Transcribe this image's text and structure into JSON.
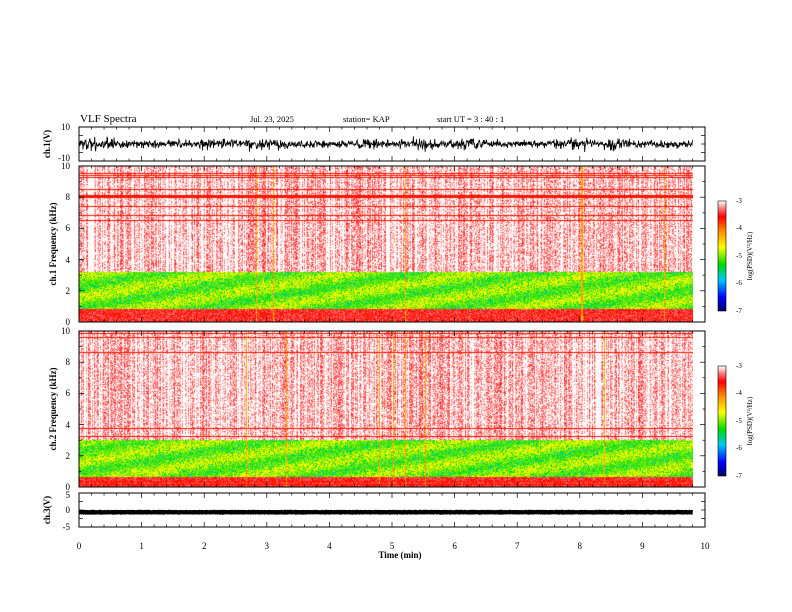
{
  "header": {
    "title": "VLF Spectra",
    "date": "Jul. 23, 2025",
    "station": "station= KAP",
    "start_ut": "start UT =  3 : 40 : 1"
  },
  "chart_data": [
    {
      "type": "line",
      "name": "ch1-waveform",
      "ylabel": "ch.1(V)",
      "ylim": [
        -10,
        10
      ],
      "y_ticks": [
        "10",
        "-10"
      ],
      "xlim": [
        0,
        10
      ],
      "x_end": 9.8,
      "typical_range": [
        -4,
        4
      ],
      "color": "#000000"
    },
    {
      "type": "heatmap",
      "name": "ch1-spectrogram",
      "ylabel": "ch.1 Frequency (kHz)",
      "ylim": [
        0,
        10
      ],
      "y_ticks": [
        "0",
        "2",
        "4",
        "6",
        "8",
        "10"
      ],
      "xlim": [
        0,
        10
      ],
      "x_end": 9.8,
      "active_band_khz": [
        0.8,
        3.2
      ],
      "colorbar": {
        "label": "log(PSD)(V²/Hz)",
        "range": [
          -7,
          -3
        ],
        "ticks": [
          "-3",
          "-4",
          "-5",
          "-6",
          "-7"
        ]
      }
    },
    {
      "type": "heatmap",
      "name": "ch2-spectrogram",
      "ylabel": "ch.2 Frequency (kHz)",
      "ylim": [
        0,
        10
      ],
      "y_ticks": [
        "0",
        "2",
        "4",
        "6",
        "8",
        "10"
      ],
      "xlim": [
        0,
        10
      ],
      "x_end": 9.8,
      "active_band_khz": [
        0.6,
        3.0
      ],
      "colorbar": {
        "label": "log(PSD)(V²/Hz)",
        "range": [
          -7,
          -3
        ],
        "ticks": [
          "-3",
          "-4",
          "-5",
          "-6",
          "-7"
        ]
      }
    },
    {
      "type": "line",
      "name": "ch3-waveform",
      "ylabel": "ch.3(V)",
      "ylim": [
        -5,
        5
      ],
      "y_ticks": [
        "5",
        "0",
        "-5"
      ],
      "xlim": [
        0,
        10
      ],
      "x_end": 9.8,
      "typical_range": [
        -1.3,
        0
      ],
      "color": "#000000"
    }
  ],
  "x_axis": {
    "label": "Time (min)",
    "ticks": [
      "0",
      "1",
      "2",
      "3",
      "4",
      "5",
      "6",
      "7",
      "8",
      "9",
      "10"
    ]
  }
}
